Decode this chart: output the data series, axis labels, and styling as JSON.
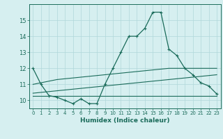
{
  "x": [
    0,
    1,
    2,
    3,
    4,
    5,
    6,
    7,
    8,
    9,
    10,
    11,
    12,
    13,
    14,
    15,
    16,
    17,
    18,
    19,
    20,
    21,
    22,
    23
  ],
  "line_main": [
    12.0,
    11.0,
    10.3,
    10.2,
    10.0,
    9.8,
    10.1,
    9.8,
    9.8,
    11.0,
    12.0,
    13.0,
    14.0,
    14.0,
    14.5,
    15.5,
    15.5,
    13.2,
    12.8,
    12.0,
    11.6,
    11.1,
    10.9,
    10.4
  ],
  "line_upper": [
    11.0,
    11.1,
    11.2,
    11.3,
    11.35,
    11.4,
    11.45,
    11.5,
    11.55,
    11.6,
    11.65,
    11.7,
    11.75,
    11.8,
    11.85,
    11.9,
    11.95,
    12.0,
    12.0,
    12.0,
    12.0,
    12.0,
    12.0,
    12.0
  ],
  "line_mid": [
    10.45,
    10.5,
    10.55,
    10.6,
    10.65,
    10.7,
    10.75,
    10.8,
    10.85,
    10.9,
    10.95,
    11.0,
    11.05,
    11.1,
    11.15,
    11.2,
    11.25,
    11.3,
    11.35,
    11.4,
    11.45,
    11.5,
    11.55,
    11.6
  ],
  "line_lower": [
    10.3,
    10.3,
    10.3,
    10.3,
    10.3,
    10.3,
    10.3,
    10.3,
    10.3,
    10.3,
    10.3,
    10.3,
    10.3,
    10.3,
    10.3,
    10.3,
    10.3,
    10.3,
    10.3,
    10.3,
    10.3,
    10.3,
    10.3,
    10.3
  ],
  "line_color": "#1a6b5a",
  "bg_color": "#d6eff0",
  "grid_color": "#b0d8da",
  "xlabel": "Humidex (Indice chaleur)",
  "ylim": [
    9.5,
    16.0
  ],
  "xlim": [
    -0.5,
    23.5
  ],
  "yticks": [
    10,
    11,
    12,
    13,
    14,
    15
  ],
  "xticks": [
    0,
    1,
    2,
    3,
    4,
    5,
    6,
    7,
    8,
    9,
    10,
    11,
    12,
    13,
    14,
    15,
    16,
    17,
    18,
    19,
    20,
    21,
    22,
    23
  ],
  "xtick_labels": [
    "0",
    "1",
    "2",
    "3",
    "4",
    "5",
    "6",
    "7",
    "8",
    "9",
    "10",
    "11",
    "12",
    "13",
    "14",
    "15",
    "16",
    "17",
    "18",
    "19",
    "20",
    "21",
    "22",
    "23"
  ],
  "figsize": [
    3.2,
    2.0
  ],
  "dpi": 100
}
